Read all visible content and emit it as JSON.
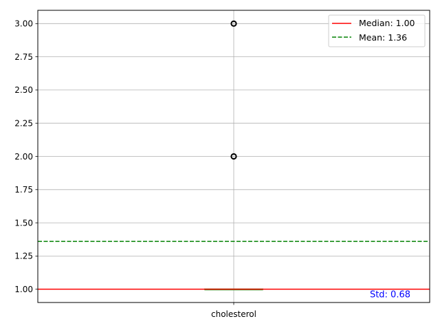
{
  "chart_data": {
    "type": "box",
    "category": "cholesterol",
    "ylim": [
      0.9,
      3.1
    ],
    "yticks": [
      1.0,
      1.25,
      1.5,
      1.75,
      2.0,
      2.25,
      2.5,
      2.75,
      3.0
    ],
    "ytick_labels": [
      "1.00",
      "1.25",
      "1.50",
      "1.75",
      "2.00",
      "2.25",
      "2.50",
      "2.75",
      "3.00"
    ],
    "grid": true,
    "box": {
      "q1": 1.0,
      "median": 1.0,
      "q3": 1.0,
      "whisker_low": 1.0,
      "whisker_high": 1.0
    },
    "outliers": [
      2.0,
      3.0
    ],
    "median_line": {
      "value": 1.0,
      "label": "Median: 1.00",
      "color": "#ff0000"
    },
    "mean_line": {
      "value": 1.36,
      "label": "Mean: 1.36",
      "color": "#008000"
    },
    "std_annotation": {
      "label": "Std: 0.68",
      "color": "#0000ff"
    },
    "legend_position": "top-right",
    "box_color": "#2ca02c"
  }
}
